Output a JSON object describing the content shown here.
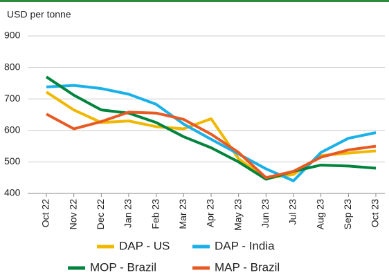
{
  "chart_data": {
    "type": "line",
    "y_label": "USD per tonne",
    "categories": [
      "Oct 22",
      "Nov 22",
      "Dec 22",
      "Jan 23",
      "Feb 23",
      "Mar 23",
      "Apr 23",
      "May 23",
      "Jun 23",
      "Jul 23",
      "Aug 23",
      "Sep 23",
      "Oct 23"
    ],
    "series": [
      {
        "name": "DAP - US",
        "color": "#f0b800",
        "values": [
          722,
          665,
          625,
          630,
          612,
          605,
          637,
          510,
          448,
          460,
          520,
          528,
          535
        ]
      },
      {
        "name": "DAP - India",
        "color": "#1ab0e8",
        "values": [
          738,
          743,
          733,
          715,
          683,
          620,
          572,
          525,
          478,
          440,
          530,
          575,
          593
        ]
      },
      {
        "name": "MOP - Brazil",
        "color": "#00843d",
        "values": [
          770,
          712,
          665,
          655,
          625,
          580,
          545,
          500,
          445,
          470,
          490,
          487,
          480
        ]
      },
      {
        "name": "MAP - Brazil",
        "color": "#e85a24",
        "values": [
          652,
          605,
          628,
          658,
          655,
          635,
          588,
          530,
          450,
          470,
          515,
          538,
          550
        ]
      }
    ],
    "ylim": [
      400,
      900
    ],
    "yticks": [
      400,
      500,
      600,
      700,
      800,
      900
    ],
    "grid": true
  }
}
